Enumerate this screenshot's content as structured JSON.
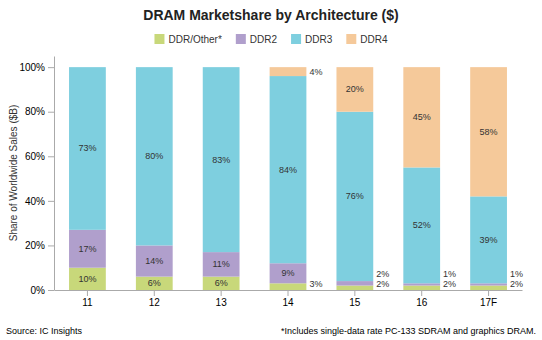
{
  "chart_data": {
    "type": "bar",
    "stacked": true,
    "title": "DRAM Marketshare by Architecture ($)",
    "ylabel": "Share of Worldwide Sales ($B)",
    "categories": [
      "11",
      "12",
      "13",
      "14",
      "15",
      "16",
      "17F"
    ],
    "series": [
      {
        "name": "DDR/Other*",
        "color": "#c8d87a",
        "values": [
          10,
          6,
          6,
          3,
          2,
          2,
          2
        ],
        "value_labels": [
          "10%",
          "6%",
          "6%",
          "3%",
          "2%",
          "2%",
          "2%"
        ]
      },
      {
        "name": "DDR2",
        "color": "#b09fcc",
        "values": [
          17,
          14,
          11,
          9,
          2,
          1,
          1
        ],
        "value_labels": [
          "17%",
          "14%",
          "11%",
          "9%",
          "2%",
          "1%",
          "1%"
        ]
      },
      {
        "name": "DDR3",
        "color": "#7ecfdf",
        "values": [
          73,
          80,
          83,
          84,
          76,
          52,
          39
        ],
        "value_labels": [
          "73%",
          "80%",
          "83%",
          "84%",
          "76%",
          "52%",
          "39%"
        ]
      },
      {
        "name": "DDR4",
        "color": "#f5c99a",
        "values": [
          0,
          0,
          0,
          4,
          20,
          45,
          58
        ],
        "value_labels": [
          null,
          null,
          null,
          "4%",
          "20%",
          "45%",
          "58%"
        ]
      }
    ],
    "ylim": [
      0,
      105
    ],
    "yticks": [
      {
        "value": 0,
        "label": "0%"
      },
      {
        "value": 20,
        "label": "20%"
      },
      {
        "value": 40,
        "label": "40%"
      },
      {
        "value": 60,
        "label": "60%"
      },
      {
        "value": 80,
        "label": "80%"
      },
      {
        "value": 100,
        "label": "100%"
      }
    ],
    "grid": false,
    "legend": "top",
    "data_labels": true,
    "annotations": [
      "Source: IC Insights",
      "*Includes single-data rate PC-133 SDRAM and graphics DRAM."
    ]
  }
}
